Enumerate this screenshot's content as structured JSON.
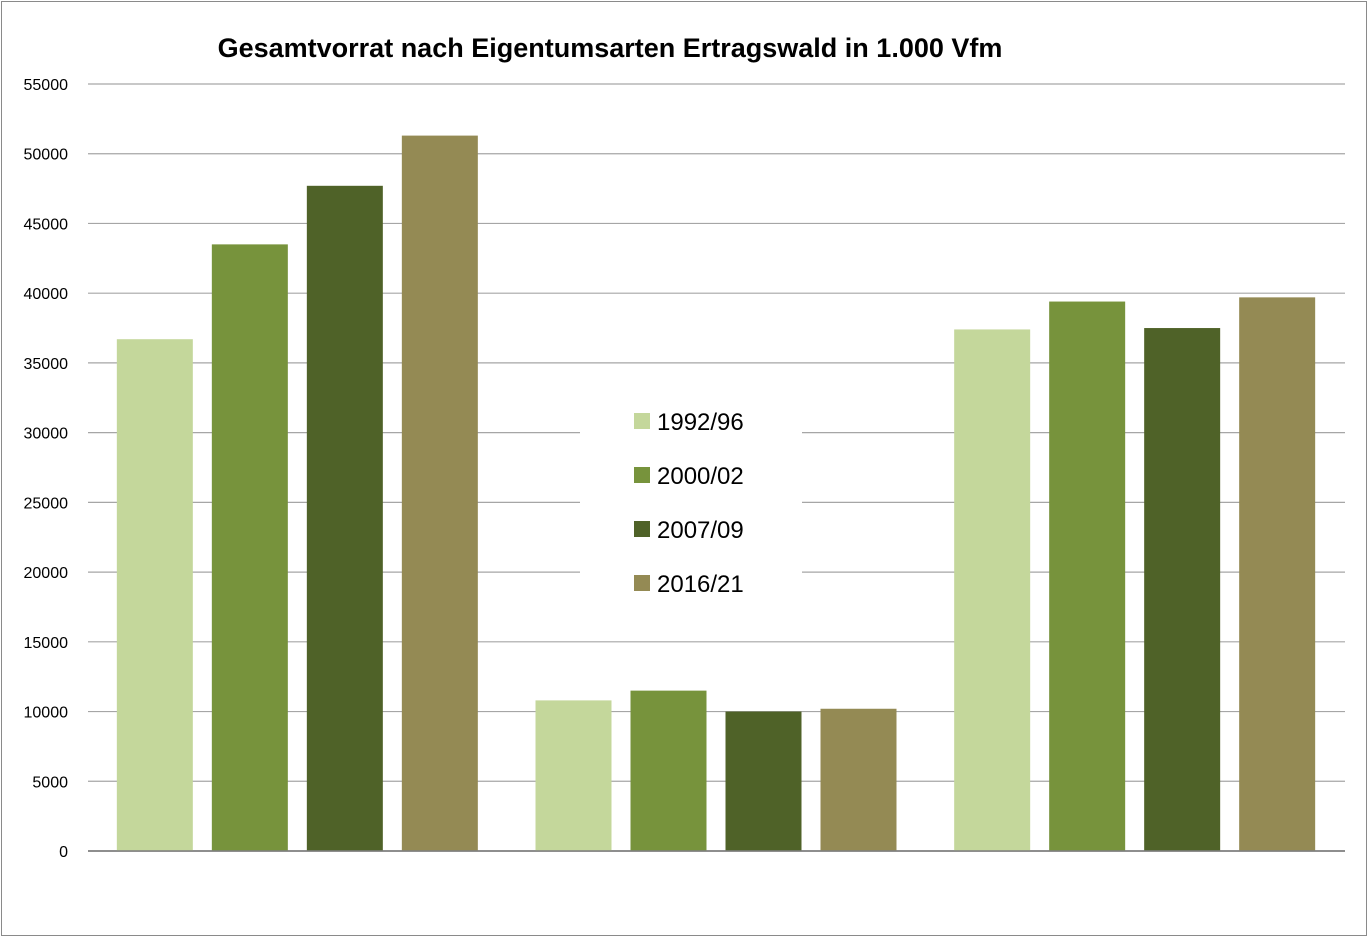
{
  "chart_data": {
    "type": "bar",
    "title": "Gesamtvorrat nach Eigentumsarten Ertragswald in 1.000 Vfm",
    "xlabel": "",
    "ylabel": "",
    "ylim": [
      0,
      55000
    ],
    "yticks": [
      "0",
      "5000",
      "10000",
      "15000",
      "20000",
      "25000",
      "30000",
      "35000",
      "40000",
      "45000",
      "50000",
      "55000"
    ],
    "grid": true,
    "legend_position": "center",
    "categories": [
      "",
      "",
      ""
    ],
    "series": [
      {
        "name": "1992/96",
        "color": "#c4d79b",
        "values": [
          36700,
          10800,
          37400
        ]
      },
      {
        "name": "2000/02",
        "color": "#77933c",
        "values": [
          43500,
          11500,
          39400
        ]
      },
      {
        "name": "2007/09",
        "color": "#4f6228",
        "values": [
          47700,
          10000,
          37500
        ]
      },
      {
        "name": "2016/21",
        "color": "#948a54",
        "values": [
          51300,
          10200,
          39700
        ]
      }
    ]
  }
}
